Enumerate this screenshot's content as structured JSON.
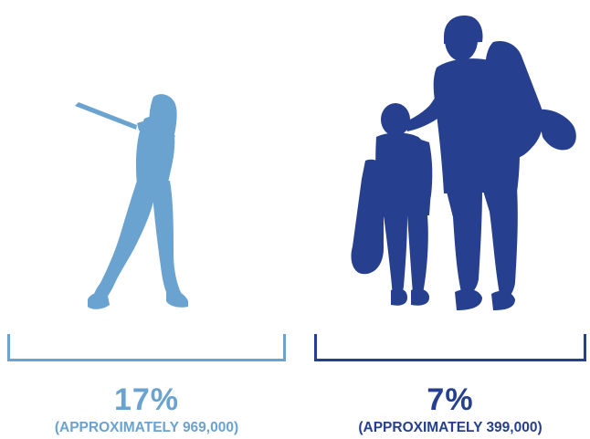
{
  "colors": {
    "left_accent": "#6aa3cf",
    "right_accent": "#26408f"
  },
  "icons": {
    "left": "woman-golfer-silhouette-icon",
    "right": "father-and-son-golfers-silhouette-icon"
  },
  "groups": [
    {
      "percent": "17%",
      "approx": "(APPROXIMATELY 969,000)"
    },
    {
      "percent": "7%",
      "approx": "(APPROXIMATELY 399,000)"
    }
  ]
}
